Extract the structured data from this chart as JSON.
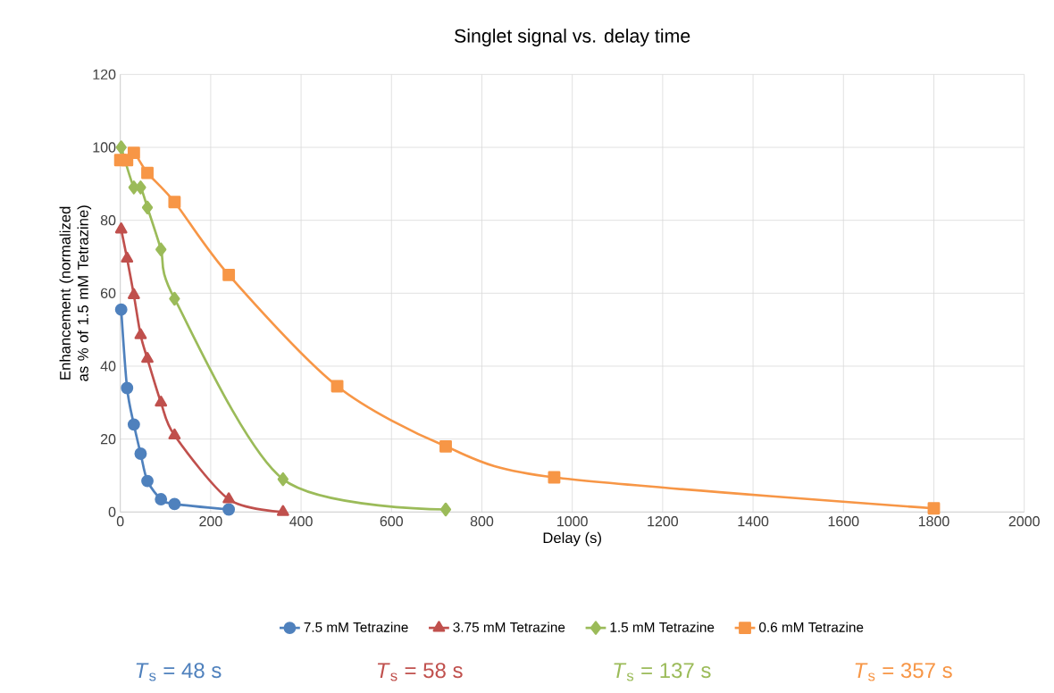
{
  "chart_data": {
    "type": "line",
    "title": "Singlet signal vs. delay time",
    "xlabel": "Delay (s)",
    "ylabel": "Enhancement (normalized  as % of 1.5 mM Tetrazine)",
    "xlim": [
      0,
      2000
    ],
    "xticks": [
      0,
      200,
      400,
      600,
      800,
      1000,
      1200,
      1400,
      1600,
      1800,
      2000
    ],
    "ylim": [
      0,
      120
    ],
    "yticks": [
      0,
      20,
      40,
      60,
      80,
      100,
      120
    ],
    "grid": true,
    "legend": "bottom",
    "series": [
      {
        "name": "7.5 mM Tetrazine",
        "color": "#4f81bd",
        "marker": "circle",
        "x": [
          2,
          15,
          30,
          45,
          60,
          90,
          120,
          240
        ],
        "values": [
          55.5,
          34,
          24,
          16,
          8.5,
          3.5,
          2.2,
          0.7
        ]
      },
      {
        "name": "3.75 mM Tetrazine",
        "color": "#c0504d",
        "marker": "triangle",
        "x": [
          2,
          15,
          30,
          45,
          60,
          90,
          120,
          240,
          360
        ],
        "values": [
          77.5,
          69.5,
          59.5,
          48.5,
          42,
          30,
          21,
          3.5,
          0
        ]
      },
      {
        "name": "1.5 mM Tetrazine",
        "color": "#9bbb59",
        "marker": "diamond",
        "x": [
          2,
          30,
          45,
          60,
          90,
          120,
          360,
          720
        ],
        "values": [
          100,
          89,
          89,
          83.5,
          72,
          58.5,
          9,
          0.7
        ]
      },
      {
        "name": "0.6 mM Tetrazine",
        "color": "#f79646",
        "marker": "square",
        "x": [
          0,
          15,
          30,
          60,
          120,
          240,
          480,
          720,
          960,
          1800
        ],
        "values": [
          96.5,
          96.5,
          98.5,
          93,
          85,
          65,
          34.5,
          18,
          9.5,
          1
        ]
      }
    ],
    "annotations": [
      "*T*$_{s}$ = 48 s",
      "*T*$_{s}$ = 58 s",
      "*T*$_{s}$ = 137 s",
      "*T*$_{s}$ = 357 s"
    ]
  }
}
